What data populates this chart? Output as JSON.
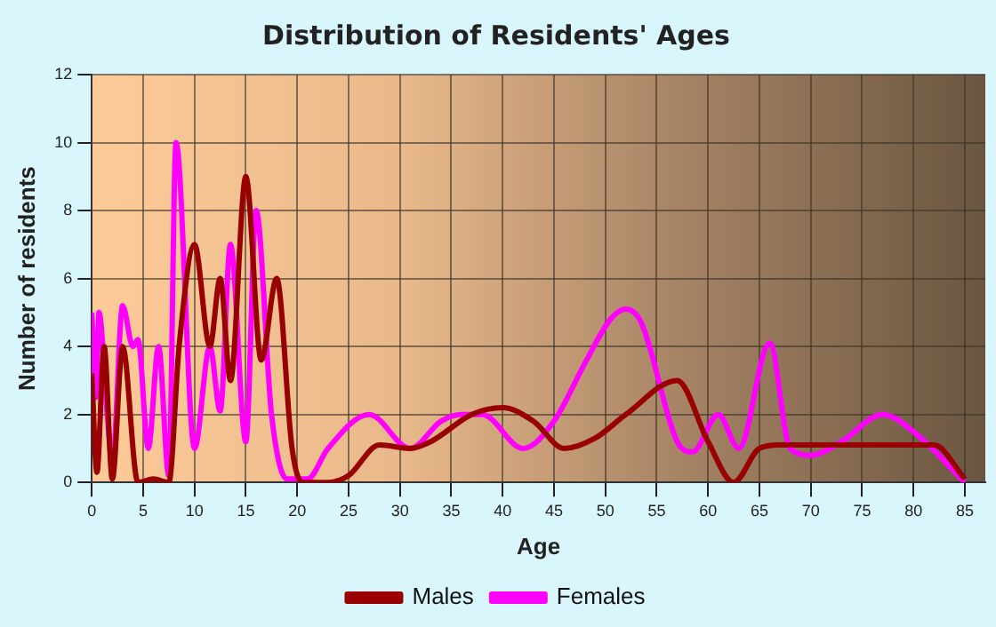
{
  "chart_data": {
    "type": "line",
    "title": "Distribution of Residents' Ages",
    "xlabel": "Age",
    "ylabel": "Number of residents",
    "xlim": [
      0,
      87
    ],
    "xticks": [
      0,
      5,
      10,
      15,
      20,
      25,
      30,
      35,
      40,
      45,
      50,
      55,
      60,
      65,
      70,
      75,
      80,
      85
    ],
    "ylim": [
      0,
      12
    ],
    "yticks": [
      0,
      2,
      4,
      6,
      8,
      10,
      12
    ],
    "grid": true,
    "legend": "bottom",
    "marker": "none",
    "line_style": "solid",
    "series": [
      {
        "name": "Males",
        "color": "#990000",
        "x": [
          0,
          0.5,
          1.2,
          2,
          3,
          4.5,
          6,
          7.5,
          8.5,
          10,
          11.5,
          12.5,
          13.5,
          15,
          16.5,
          18,
          19.5,
          20.5,
          23,
          25,
          28,
          31,
          33,
          37,
          40,
          43,
          46,
          49,
          52,
          57,
          60,
          62.5,
          65,
          67,
          73,
          79,
          82,
          85
        ],
        "values": [
          3.2,
          0.3,
          4,
          0.1,
          4,
          0,
          0.1,
          0,
          4,
          7,
          4,
          6,
          3,
          9,
          3.6,
          6,
          1,
          0,
          0,
          0.2,
          1.1,
          1,
          1.2,
          2,
          2.2,
          1.8,
          1,
          1.3,
          2,
          3,
          1.2,
          0,
          1,
          1.1,
          1.1,
          1.1,
          1.1,
          0.1
        ]
      },
      {
        "name": "Females",
        "color": "#ff00ff",
        "x": [
          0,
          0.4,
          0.7,
          1.5,
          2,
          3,
          4,
          4.5,
          5.5,
          6.5,
          7.5,
          8.2,
          10,
          11.5,
          12.5,
          13.5,
          15,
          16,
          17.5,
          19,
          21,
          23,
          27,
          31,
          34,
          36,
          38,
          42,
          45,
          48,
          50.5,
          52,
          53.5,
          57,
          58.5,
          61,
          63,
          66,
          68,
          70,
          73,
          77,
          80,
          85
        ],
        "values": [
          5,
          2.5,
          5,
          2,
          0.5,
          5.2,
          4,
          4.2,
          1,
          4,
          0.2,
          10,
          1,
          4,
          2.1,
          7,
          1.2,
          8,
          2,
          0.1,
          0.1,
          1,
          2,
          1,
          1.8,
          2,
          2,
          1,
          1.8,
          3.5,
          4.8,
          5.1,
          4.7,
          1.2,
          0.9,
          2,
          1,
          4.1,
          1,
          0.8,
          1.2,
          2,
          1.5,
          0
        ]
      }
    ]
  }
}
